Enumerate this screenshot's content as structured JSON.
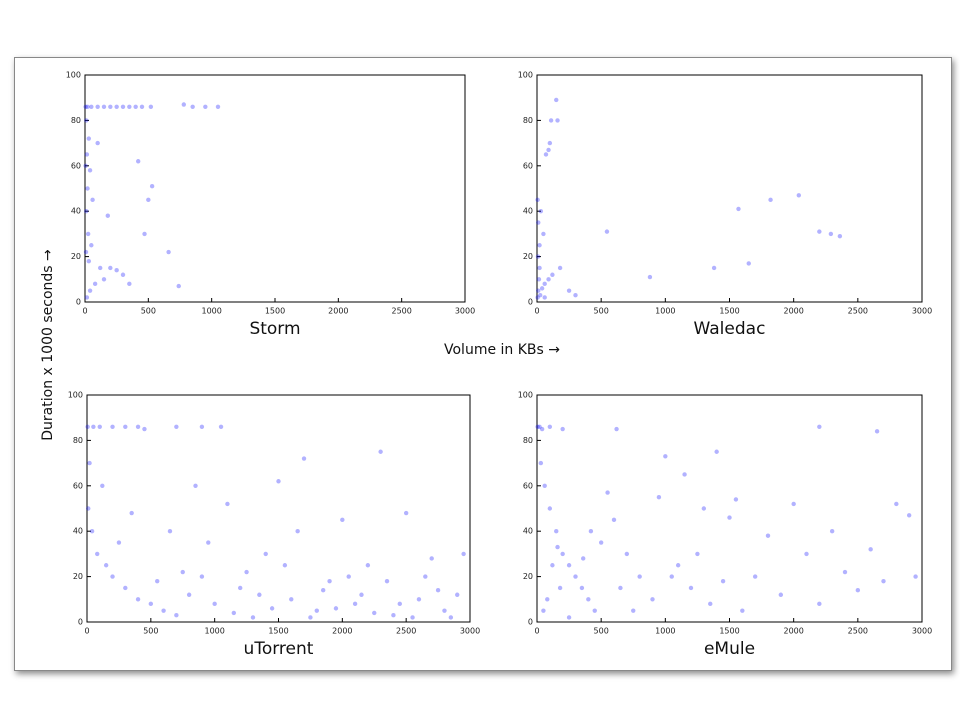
{
  "axis_labels": {
    "x": "Volume in KBs →",
    "y": "Duration x 1000 seconds →"
  },
  "chart_data": [
    {
      "type": "scatter",
      "title": "Storm",
      "color": "#0000ff",
      "xlim": [
        0,
        3000
      ],
      "ylim": [
        0,
        100
      ],
      "xticks": [
        0,
        500,
        1000,
        1500,
        2000,
        2500,
        3000
      ],
      "yticks": [
        0,
        20,
        40,
        60,
        80,
        100
      ],
      "x": [
        5,
        20,
        50,
        100,
        150,
        200,
        250,
        300,
        350,
        400,
        450,
        520,
        780,
        850,
        950,
        1050,
        10,
        30,
        15,
        40,
        20,
        60,
        10,
        25,
        50,
        8,
        30,
        120,
        200,
        250,
        300,
        150,
        80,
        40,
        15,
        5,
        100,
        420,
        500,
        530,
        470,
        660,
        740,
        350,
        180
      ],
      "y": [
        86,
        86,
        86,
        86,
        86,
        86,
        86,
        86,
        86,
        86,
        86,
        86,
        87,
        86,
        86,
        86,
        80,
        72,
        65,
        58,
        50,
        45,
        40,
        30,
        25,
        22,
        18,
        15,
        15,
        14,
        12,
        10,
        8,
        5,
        2,
        60,
        70,
        62,
        45,
        51,
        30,
        22,
        7,
        8,
        38
      ]
    },
    {
      "type": "scatter",
      "title": "Waledac",
      "color": "#0000ff",
      "xlim": [
        0,
        3000
      ],
      "ylim": [
        0,
        100
      ],
      "xticks": [
        0,
        500,
        1000,
        1500,
        2000,
        2500,
        3000
      ],
      "yticks": [
        0,
        20,
        40,
        60,
        80,
        100
      ],
      "x": [
        5,
        10,
        15,
        20,
        8,
        25,
        40,
        60,
        90,
        120,
        180,
        250,
        300,
        50,
        30,
        70,
        100,
        110,
        160,
        150,
        90,
        545,
        880,
        1380,
        1570,
        1650,
        1820,
        2040,
        2200,
        2290,
        2360,
        20,
        10,
        60,
        5
      ],
      "y": [
        2,
        5,
        10,
        15,
        20,
        3,
        6,
        8,
        10,
        12,
        15,
        5,
        3,
        30,
        40,
        65,
        70,
        80,
        80,
        89,
        67,
        31,
        11,
        15,
        41,
        17,
        45,
        47,
        31,
        30,
        29,
        25,
        35,
        2,
        45
      ]
    },
    {
      "type": "scatter",
      "title": "uTorrent",
      "color": "#0000ff",
      "xlim": [
        0,
        3000
      ],
      "ylim": [
        0,
        100
      ],
      "xticks": [
        0,
        500,
        1000,
        1500,
        2000,
        2500,
        3000
      ],
      "yticks": [
        0,
        20,
        40,
        60,
        80,
        100
      ],
      "x": [
        5,
        50,
        100,
        200,
        300,
        400,
        450,
        700,
        900,
        1050,
        20,
        10,
        40,
        80,
        150,
        200,
        300,
        400,
        500,
        600,
        700,
        800,
        900,
        1000,
        1100,
        1200,
        1300,
        1400,
        1500,
        1600,
        1700,
        1800,
        1900,
        2000,
        2100,
        2200,
        2300,
        2400,
        2500,
        2600,
        2700,
        2800,
        2900,
        2950,
        120,
        250,
        350,
        550,
        650,
        750,
        850,
        950,
        1150,
        1250,
        1350,
        1450,
        1550,
        1650,
        1750,
        1850,
        1950,
        2050,
        2150,
        2250,
        2350,
        2450,
        2550,
        2650,
        2750,
        2850
      ],
      "y": [
        86,
        86,
        86,
        86,
        86,
        86,
        85,
        86,
        86,
        86,
        70,
        50,
        40,
        30,
        25,
        20,
        15,
        10,
        8,
        5,
        3,
        12,
        20,
        8,
        52,
        15,
        2,
        30,
        62,
        10,
        72,
        5,
        18,
        45,
        8,
        25,
        75,
        3,
        48,
        10,
        28,
        5,
        12,
        30,
        60,
        35,
        48,
        18,
        40,
        22,
        60,
        35,
        4,
        22,
        12,
        6,
        25,
        40,
        2,
        14,
        6,
        20,
        12,
        4,
        18,
        8,
        2,
        20,
        14,
        2
      ]
    },
    {
      "type": "scatter",
      "title": "eMule",
      "color": "#0000ff",
      "xlim": [
        0,
        3000
      ],
      "ylim": [
        0,
        100
      ],
      "xticks": [
        0,
        500,
        1000,
        1500,
        2000,
        2500,
        3000
      ],
      "yticks": [
        0,
        20,
        40,
        60,
        80,
        100
      ],
      "x": [
        5,
        20,
        40,
        100,
        200,
        620,
        2200,
        2650,
        30,
        60,
        100,
        150,
        200,
        250,
        300,
        350,
        400,
        450,
        500,
        550,
        600,
        700,
        800,
        900,
        1000,
        1100,
        1200,
        1300,
        1400,
        1500,
        1600,
        1700,
        1800,
        1900,
        2000,
        2100,
        2200,
        2300,
        2400,
        2500,
        2600,
        2700,
        2800,
        2900,
        2950,
        80,
        120,
        180,
        50,
        250,
        160,
        360,
        420,
        650,
        750,
        950,
        1050,
        1150,
        1250,
        1350,
        1450,
        1550
      ],
      "y": [
        86,
        86,
        85,
        86,
        85,
        85,
        86,
        84,
        70,
        60,
        50,
        40,
        30,
        25,
        20,
        15,
        10,
        5,
        35,
        57,
        45,
        30,
        20,
        10,
        73,
        25,
        15,
        50,
        75,
        46,
        5,
        20,
        38,
        12,
        52,
        30,
        8,
        40,
        22,
        14,
        32,
        18,
        52,
        47,
        20,
        10,
        25,
        15,
        5,
        2,
        33,
        28,
        40,
        15,
        5,
        55,
        20,
        65,
        30,
        8,
        18,
        54
      ]
    }
  ]
}
